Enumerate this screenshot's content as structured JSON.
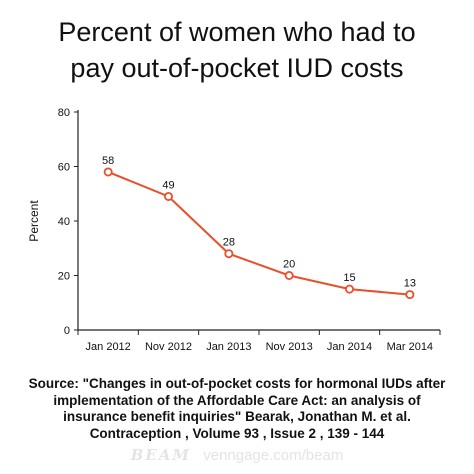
{
  "title_lines": [
    "Percent of women who had to",
    "pay out-of-pocket IUD costs"
  ],
  "chart_data": {
    "type": "line",
    "title": "Percent of women who had to pay out-of-pocket IUD costs",
    "xlabel": "",
    "ylabel": "Percent",
    "categories": [
      "Jan 2012",
      "Nov 2012",
      "Jan 2013",
      "Nov 2013",
      "Jan 2014",
      "Mar 2014"
    ],
    "series": [
      {
        "values": [
          58,
          49,
          28,
          20,
          15,
          13
        ],
        "color": "#e8502c"
      }
    ],
    "data_labels": [
      "58",
      "49",
      "28",
      "20",
      "15",
      "13"
    ],
    "ylim": [
      0,
      80
    ],
    "yticks": [
      0,
      20,
      40,
      60,
      80
    ],
    "ytick_labels": [
      "0",
      "20",
      "40",
      "60",
      "80"
    ],
    "grid": false,
    "legend": "none"
  },
  "source_lines": [
    "Source: \"Changes in out-of-pocket costs for hormonal IUDs after",
    "implementation of the Affordable Care Act: an analysis of",
    "insurance benefit inquiries\" Bearak, Jonathan M. et al.",
    "Contraception , Volume 93 , Issue 2 , 139 - 144"
  ],
  "footer": {
    "brand": "BEAM",
    "site": "venngage.com/beam"
  }
}
